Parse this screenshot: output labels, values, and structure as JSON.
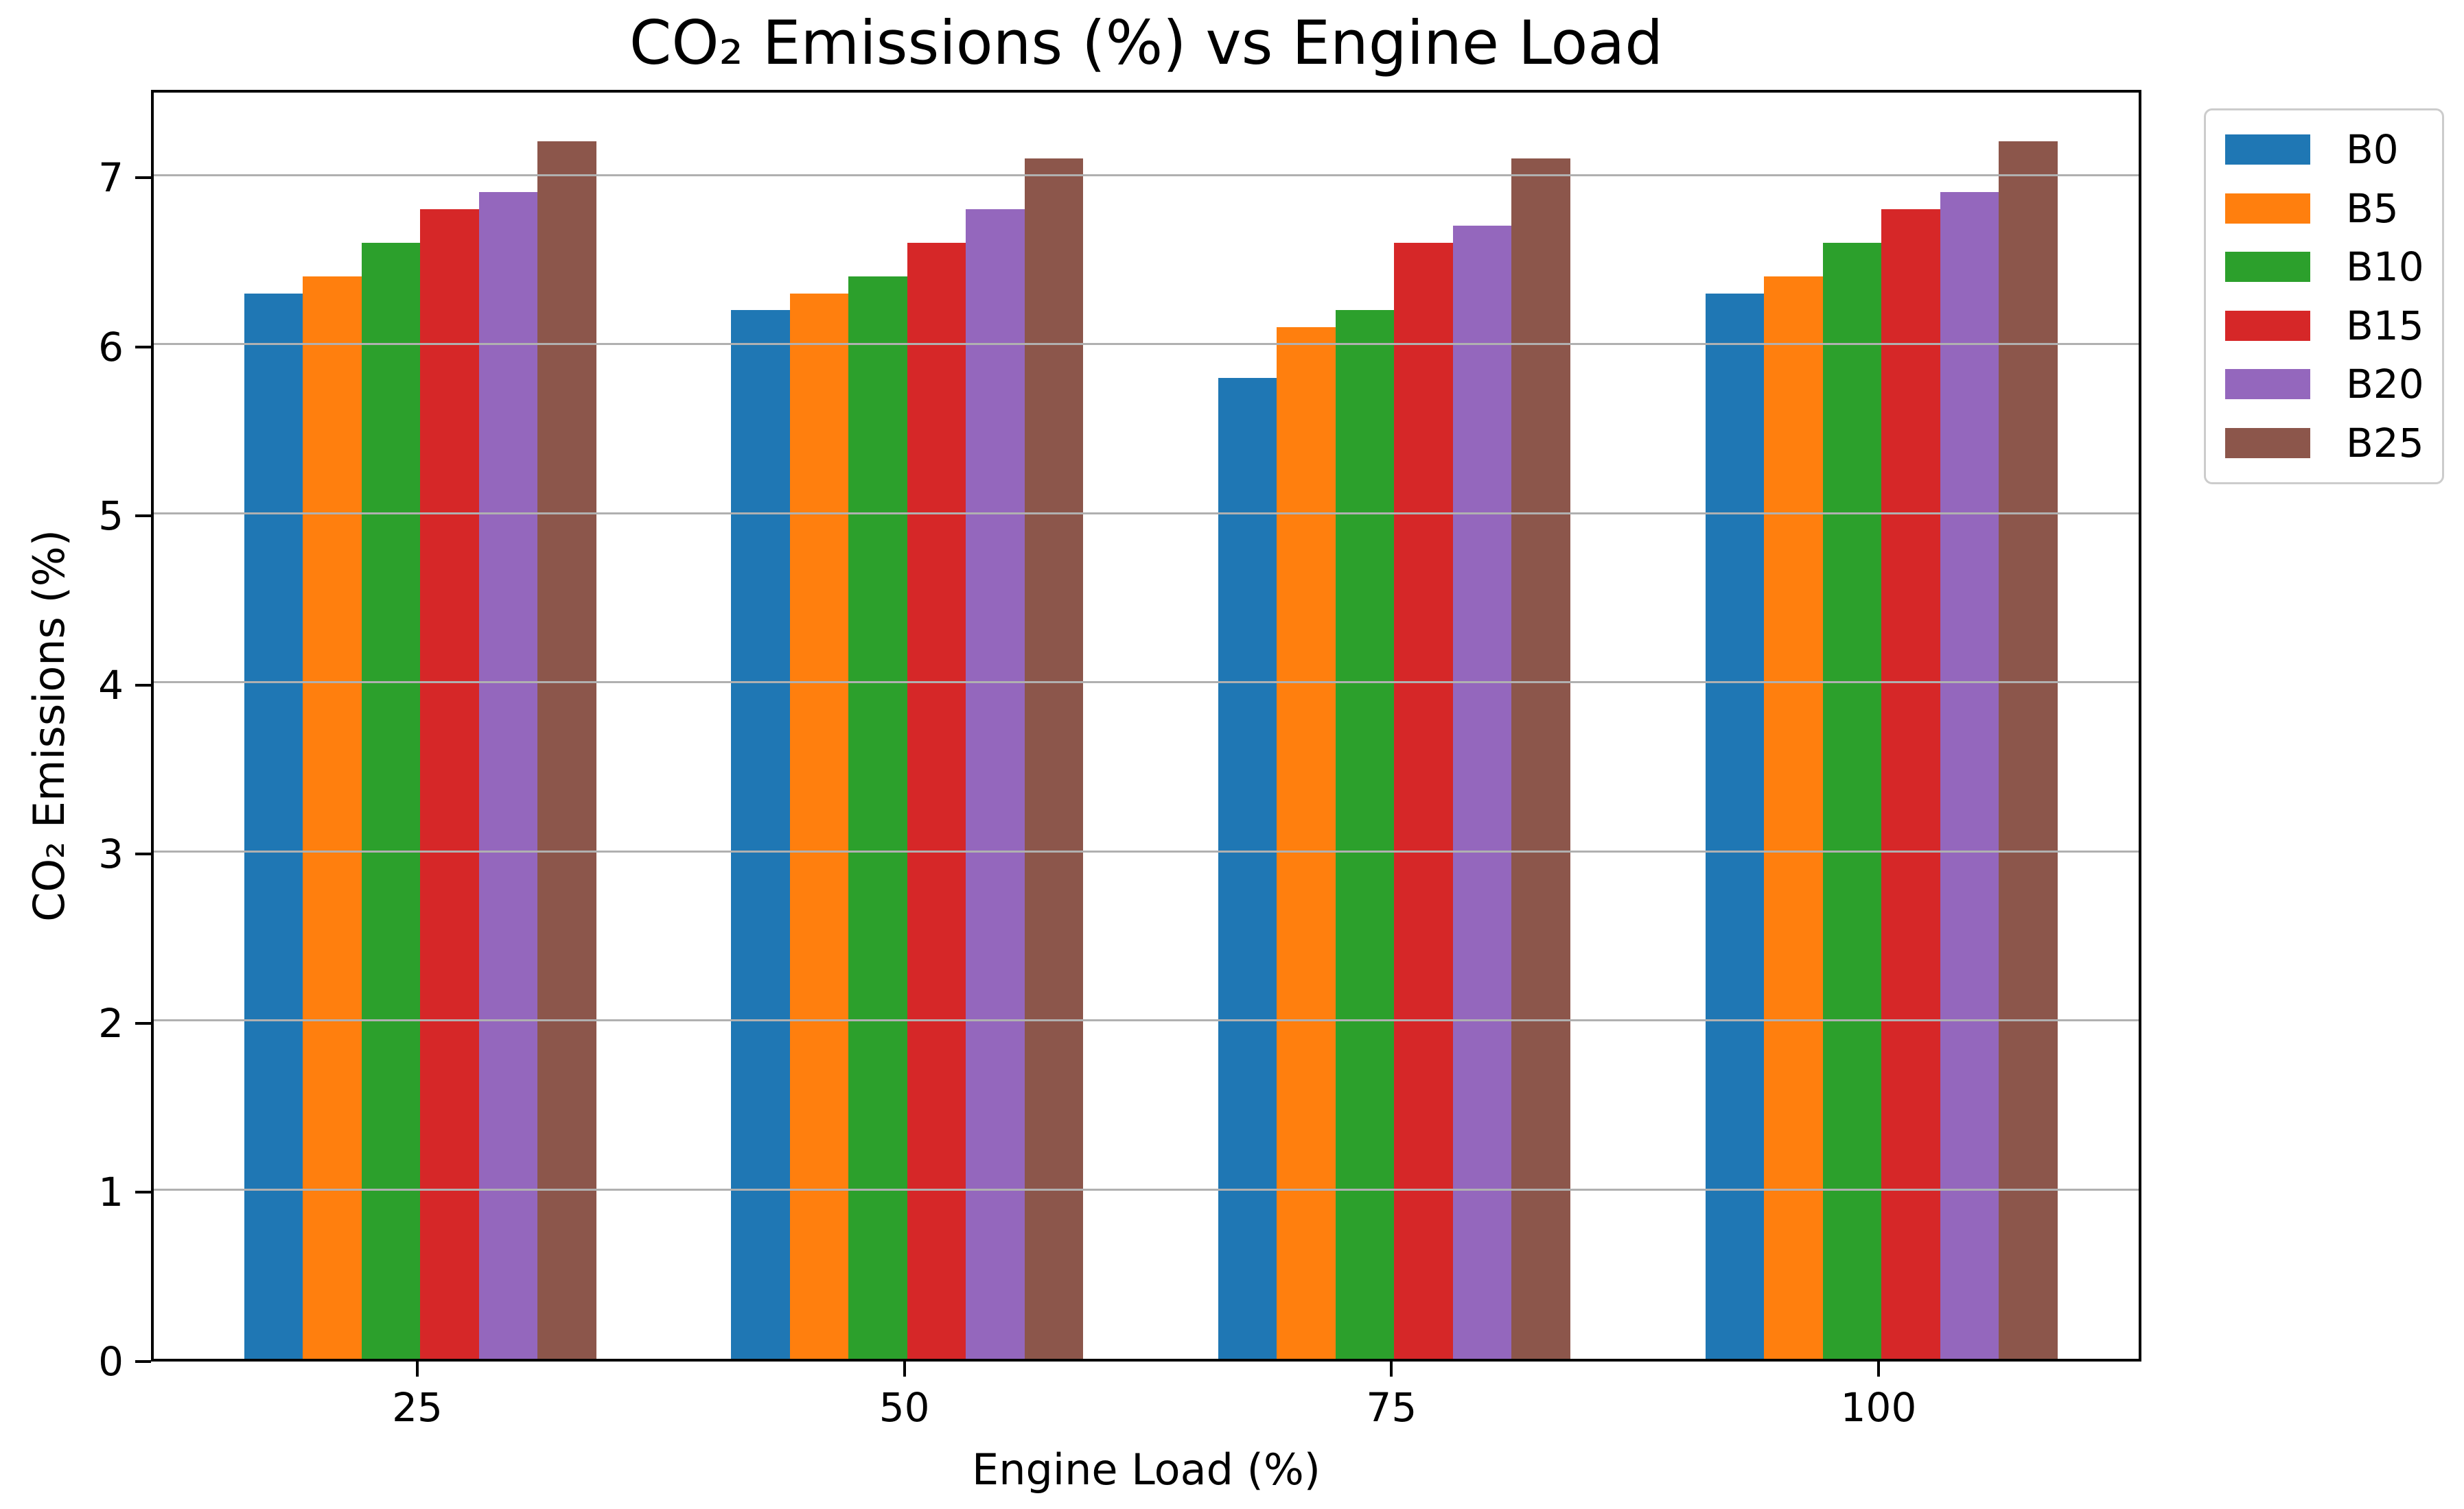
{
  "chart_data": {
    "type": "bar",
    "title": "CO₂ Emissions (%) vs Engine Load",
    "xlabel": "Engine Load (%)",
    "ylabel": "CO₂ Emissions (%)",
    "categories": [
      "25",
      "50",
      "75",
      "100"
    ],
    "series": [
      {
        "name": "B0",
        "color": "#1f77b4",
        "values": [
          6.3,
          6.2,
          5.8,
          6.3
        ]
      },
      {
        "name": "B5",
        "color": "#ff7f0e",
        "values": [
          6.4,
          6.3,
          6.1,
          6.4
        ]
      },
      {
        "name": "B10",
        "color": "#2ca02c",
        "values": [
          6.6,
          6.4,
          6.2,
          6.6
        ]
      },
      {
        "name": "B15",
        "color": "#d62728",
        "values": [
          6.8,
          6.6,
          6.6,
          6.8
        ]
      },
      {
        "name": "B20",
        "color": "#9467bd",
        "values": [
          6.9,
          6.8,
          6.7,
          6.9
        ]
      },
      {
        "name": "B25",
        "color": "#8c564b",
        "values": [
          7.2,
          7.1,
          7.1,
          7.2
        ]
      }
    ],
    "ylim": [
      0,
      7.52
    ],
    "yticks": [
      0,
      1,
      2,
      3,
      4,
      5,
      6,
      7
    ],
    "grid": true,
    "grid_on_top_of_bars": true,
    "legend_position": "outside-upper-right"
  },
  "colors": {
    "background": "#ffffff",
    "grid": "#b0b0b0",
    "spine": "#000000",
    "text": "#000000",
    "legend_border": "#cccccc"
  }
}
